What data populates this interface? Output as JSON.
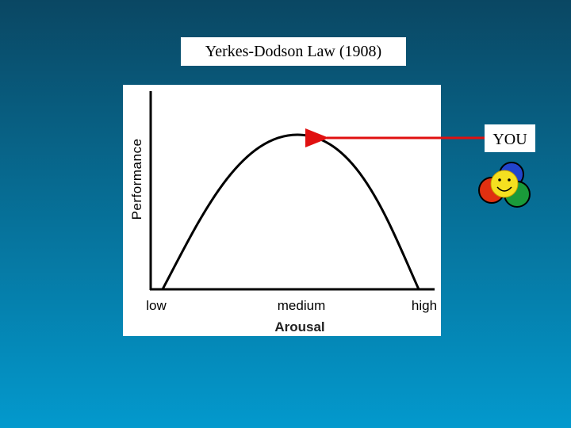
{
  "title": "Yerkes-Dodson Law (1908)",
  "chart": {
    "y_axis_label": "Performance",
    "x_axis_label": "Arousal",
    "x_labels": [
      "low",
      "medium",
      "high"
    ]
  },
  "annotation": "YOU"
}
